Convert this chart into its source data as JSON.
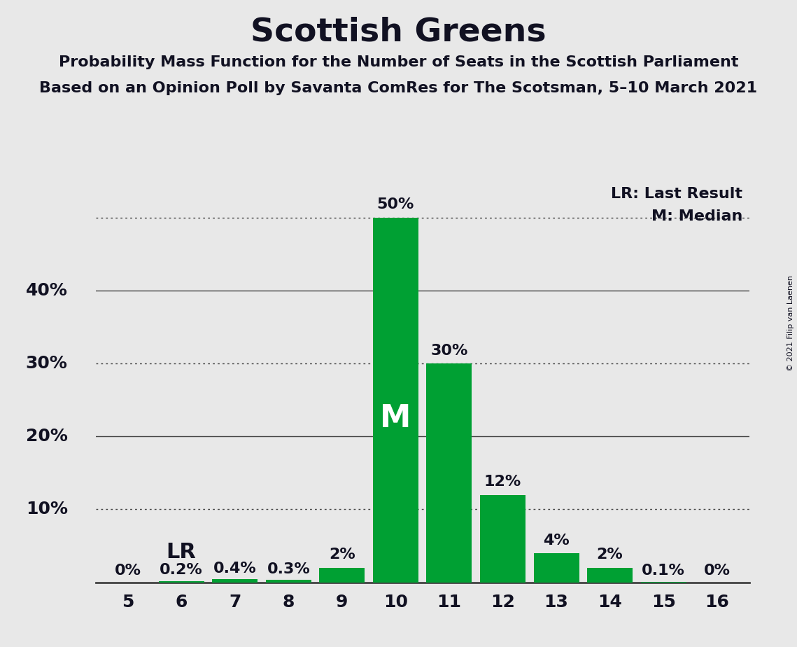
{
  "title": "Scottish Greens",
  "subtitle1": "Probability Mass Function for the Number of Seats in the Scottish Parliament",
  "subtitle2": "Based on an Opinion Poll by Savanta ComRes for The Scotsman, 5–10 March 2021",
  "copyright": "© 2021 Filip van Laenen",
  "seats": [
    5,
    6,
    7,
    8,
    9,
    10,
    11,
    12,
    13,
    14,
    15,
    16
  ],
  "probabilities": [
    0.0,
    0.2,
    0.4,
    0.3,
    2.0,
    50.0,
    30.0,
    12.0,
    4.0,
    2.0,
    0.1,
    0.0
  ],
  "bar_color": "#00A033",
  "median_seat": 10,
  "last_result_seat": 6,
  "legend_LR": "LR: Last Result",
  "legend_M": "M: Median",
  "background_color": "#E8E8E8",
  "text_color": "#111122",
  "grid_color": "#444444",
  "ylim_max": 55,
  "dotted_line_y": [
    10,
    30,
    50
  ],
  "solid_line_y": [
    20,
    40
  ],
  "ytick_positions": [
    10,
    20,
    30,
    40
  ],
  "ytick_labels": [
    "10%",
    "20%",
    "30%",
    "40%"
  ]
}
